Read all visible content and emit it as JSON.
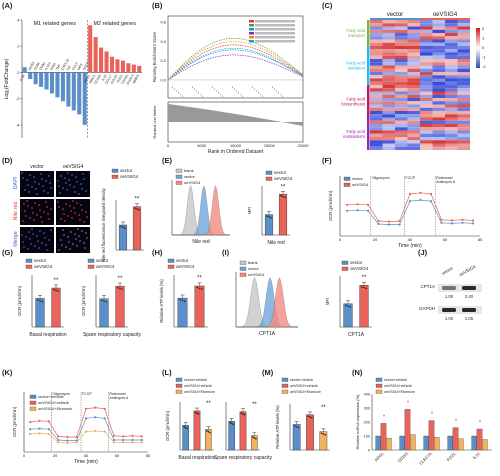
{
  "colors": {
    "vector": "#5b8fc9",
    "oe": "#e8635a",
    "oebz": "#f2b15f",
    "grey": "#c8c8c8",
    "blue": "#4f7fd0",
    "red": "#e5404a"
  },
  "panels": [
    "(A)",
    "(B)",
    "(C)",
    "(D)",
    "(E)",
    "(F)",
    "(G)",
    "(H)",
    "(I)",
    "(J)",
    "(K)",
    "(L)",
    "(M)",
    "(N)"
  ],
  "panel_A": {
    "m1_label": "M1 related genes",
    "m2_label": "M2 related genes",
    "ylabel": "Log₂(FoldChange)",
    "genes": [
      "IL1B",
      "NOS2",
      "CD86",
      "CD80",
      "IL12A",
      "IFNG",
      "TNF",
      "CXCL10",
      "IL6",
      "CCL2",
      "IRF5",
      "SOCS3",
      "ARG1",
      "MRC1",
      "CD163",
      "IL10",
      "CCL17",
      "CCL22",
      "FIZZ1",
      "TGFB1",
      "CHI3L3",
      "MMP9"
    ],
    "values": [
      0.4,
      -0.5,
      -0.9,
      -1.1,
      -1.3,
      -1.6,
      -1.9,
      -2.2,
      -2.6,
      -2.9,
      -3.2,
      -4.0,
      3.6,
      2.7,
      1.9,
      1.6,
      1.2,
      1.0,
      0.9,
      0.7,
      0.6,
      0.5
    ],
    "ylim": [
      -5,
      4
    ],
    "yticks": [
      -4,
      -2,
      0,
      2,
      4
    ]
  },
  "panel_B": {
    "ylabel": "Running Enrichment Score",
    "ylabel2": "Ranked List Metric",
    "xlabel": "Rank in Ordered Dataset",
    "yticks": [
      "0.6",
      "0.4",
      "0.2",
      "0.0"
    ],
    "xticks": [
      "0",
      "5000",
      "10000",
      "15000",
      "20000"
    ]
  },
  "panel_C": {
    "col_labels": [
      "vector",
      "oeVSIG4"
    ],
    "groups": [
      {
        "name": "Fatty acid transport",
        "color": "#7cb342"
      },
      {
        "name": "Fatty acid oxidation",
        "color": "#29b6f6"
      },
      {
        "name": "Fatty acid biosynthesis",
        "color": "#c2185b"
      },
      {
        "name": "Fatty acid metabolism",
        "color": "#9c27b0"
      }
    ],
    "scale": [
      "2",
      "1",
      "0",
      "-1",
      "-2"
    ]
  },
  "panel_D": {
    "col_labels": [
      "vector",
      "oeVSIG4"
    ],
    "row_labels": [
      "DAPI",
      "Nile red",
      "Merge"
    ],
    "row_colors": [
      "#3f6fe0",
      "#e53935",
      "#7b3fbf"
    ],
    "ylabel": "Nile red fluorescence integrated density",
    "legend": [
      "vector",
      "oeVSIG4"
    ],
    "values": [
      7.5,
      13
    ],
    "ylim": [
      0,
      15
    ],
    "sig": "**"
  },
  "panel_E": {
    "legend": [
      "blank",
      "vector",
      "oeVSIG4"
    ],
    "legend2": [
      "vector",
      "oeVSIG4"
    ],
    "xlabel": "Nile red",
    "xlabel2": "Nile red",
    "ylabel2": "MFI",
    "values": [
      5000,
      10000
    ],
    "sig": "**"
  },
  "panel_F": {
    "ylabel": "OCR (pmol/min)",
    "xlabel": "Time (min)",
    "legend": [
      "vector",
      "oeVSIG4"
    ],
    "injections": [
      "Oligomycin",
      "FCCP",
      "Rotenone/\nAntimycin A"
    ],
    "xticks": [
      "0",
      "20",
      "40",
      "60",
      "80"
    ]
  },
  "panel_G": {
    "ylabel": "OCR (pmol/min)",
    "legend": [
      "vector",
      "oeVSIG4"
    ],
    "charts": [
      {
        "xlabel": "Basal respiration",
        "values": [
          33,
          45
        ],
        "sig": "**"
      },
      {
        "xlabel": "Spare respiratory capacity",
        "values": [
          38,
          55
        ],
        "sig": "**"
      }
    ]
  },
  "panel_H": {
    "ylabel": "Relative ATP levels (%)",
    "legend": [
      "vector",
      "oeVSIG4"
    ],
    "values": [
      100,
      142
    ],
    "sig": "**"
  },
  "panel_I": {
    "legend": [
      "blank",
      "vector",
      "oeVSIG4"
    ],
    "legend2": [
      "vector",
      "oeVSIG4"
    ],
    "xlabel": "CPT1A",
    "xlabel2": "CPT1A",
    "ylabel2": "MFI",
    "values": [
      5000,
      9000
    ],
    "sig": "**"
  },
  "panel_J": {
    "col_labels": [
      "vector",
      "oeVSIG4"
    ],
    "rows": [
      "CPT1A",
      "GAPDH"
    ],
    "quant": [
      "1.00",
      "2.40",
      "1.00",
      "1.05"
    ]
  },
  "panel_K": {
    "ylabel": "OCR (pmol/min)",
    "xlabel": "Time (min)",
    "legend": [
      "vector+vehicle",
      "oeVSIG4+vehicle",
      "oeVSIG4+Etomoxir"
    ],
    "injections": [
      "Oligomycin",
      "FCCP",
      "Rotenone/\nAntimycin A"
    ],
    "xticks": [
      "0",
      "20",
      "40",
      "60",
      "80"
    ]
  },
  "panel_L": {
    "legend": [
      "vector+vehicle",
      "oeVSIG4+vehicle",
      "oeVSIG4+Etomoxir"
    ],
    "ylabel": "OCR (pmol/min)",
    "charts": [
      {
        "xlabel": "Basal respiration",
        "values": [
          36,
          57,
          30
        ]
      },
      {
        "xlabel": "Spare respiratory capacity",
        "values": [
          60,
          80,
          30
        ]
      }
    ],
    "sig": "**"
  },
  "panel_M": {
    "legend": [
      "vector+vehicle",
      "oeVSIG4+vehicle",
      "oeVSIG4+Etomoxir"
    ],
    "ylabel": "Relative ATP levels (%)",
    "values": [
      100,
      138,
      72
    ],
    "sig": "**"
  },
  "panel_N": {
    "legend": [
      "vector+vehicle",
      "oeVSIG4+vehicle",
      "oeVSIG4+Etomoxir"
    ],
    "ylabel": "Relative mRNA expression (%)",
    "genes": [
      "ARG1",
      "CD163",
      "CLEC7A",
      "FIZZ1",
      "IL10"
    ],
    "values": [
      [
        100,
        190,
        85
      ],
      [
        100,
        290,
        110
      ],
      [
        100,
        210,
        90
      ],
      [
        100,
        160,
        80
      ],
      [
        100,
        150,
        75
      ]
    ],
    "ylim": [
      0,
      400
    ],
    "sig": "*"
  }
}
